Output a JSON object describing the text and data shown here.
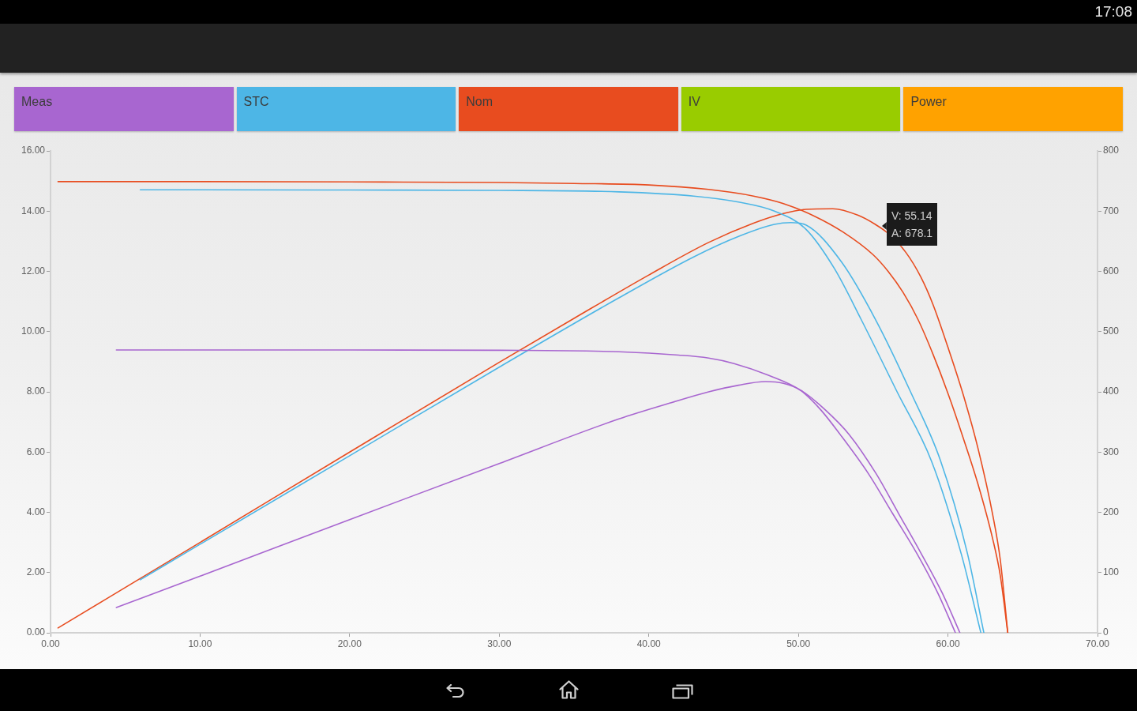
{
  "chart_data": {
    "type": "line",
    "xlim": [
      0,
      70
    ],
    "xticks": [
      {
        "value": 0,
        "label": "0.00"
      },
      {
        "value": 10,
        "label": "10.00"
      },
      {
        "value": 20,
        "label": "20.00"
      },
      {
        "value": 30,
        "label": "30.00"
      },
      {
        "value": 40,
        "label": "40.00"
      },
      {
        "value": 50,
        "label": "50.00"
      },
      {
        "value": 60,
        "label": "60.00"
      },
      {
        "value": 70,
        "label": "70.00"
      }
    ],
    "ylim": [
      0,
      16
    ],
    "yticks": [
      {
        "value": 0,
        "label": "0.00"
      },
      {
        "value": 2,
        "label": "2.00"
      },
      {
        "value": 4,
        "label": "4.00"
      },
      {
        "value": 6,
        "label": "6.00"
      },
      {
        "value": 8,
        "label": "8.00"
      },
      {
        "value": 10,
        "label": "10.00"
      },
      {
        "value": 12,
        "label": "12.00"
      },
      {
        "value": 14,
        "label": "14.00"
      },
      {
        "value": 16,
        "label": "16.00"
      }
    ],
    "y2lim": [
      0,
      800
    ],
    "y2ticks": [
      0,
      100,
      200,
      300,
      400,
      500,
      600,
      700,
      800
    ],
    "legend": "top",
    "annotations": [
      "IV",
      "Power",
      "V: 55.14\nA: 678.1",
      "17:08"
    ],
    "series": [
      {
        "name": "Meas",
        "color": "#a866d0",
        "x": [
          4.4,
          10,
          20,
          30,
          38,
          42,
          44,
          45.7,
          48,
          50.2,
          51.5,
          52.8,
          54.7,
          56.3,
          57.9,
          59.3,
          60.5
        ],
        "values": [
          9.39,
          9.39,
          9.39,
          9.38,
          9.33,
          9.22,
          9.12,
          8.94,
          8.55,
          8.03,
          7.4,
          6.58,
          5.27,
          3.96,
          2.65,
          1.34,
          0
        ]
      },
      {
        "color": "#a866d0",
        "axis": "y2",
        "x": [
          4.4,
          10,
          20,
          30,
          38,
          41.5,
          44,
          46,
          47.8,
          49,
          50.2,
          51.8,
          53.4,
          55.2,
          56.7,
          58.2,
          59.6,
          60.8
        ],
        "values": [
          42,
          94,
          188,
          281,
          355,
          382,
          400,
          411,
          417,
          414,
          402,
          370,
          329,
          264,
          198,
          132,
          67,
          0
        ]
      },
      {
        "name": "STC",
        "color": "#4db6e6",
        "x": [
          6,
          10,
          20,
          30,
          38,
          43,
          46,
          48.4,
          50.5,
          52.4,
          54.2,
          56.6,
          58.9,
          60.9,
          62.2
        ],
        "values": [
          14.71,
          14.71,
          14.7,
          14.69,
          14.64,
          14.5,
          14.3,
          14.0,
          13.4,
          12.1,
          10.4,
          8.0,
          5.7,
          2.6,
          0
        ]
      },
      {
        "color": "#4db6e6",
        "axis": "y2",
        "x": [
          6,
          10,
          20,
          30,
          38,
          43,
          46,
          48.4,
          49.5,
          50.5,
          52.9,
          55.2,
          57.5,
          59.5,
          61.3,
          62.4
        ],
        "values": [
          88,
          147,
          294,
          441,
          556,
          624,
          658,
          678,
          681,
          677,
          615,
          518,
          400,
          286,
          132,
          0
        ]
      },
      {
        "name": "Nom",
        "color": "#e84c1f",
        "x": [
          0.5,
          10,
          20,
          30,
          35,
          40,
          44,
          47,
          49,
          51,
          53,
          55,
          56,
          57,
          58,
          59,
          60,
          61,
          62,
          63,
          63.5,
          64
        ],
        "values": [
          14.98,
          14.98,
          14.97,
          14.95,
          14.92,
          14.87,
          14.72,
          14.5,
          14.25,
          13.85,
          13.3,
          12.55,
          12.0,
          11.3,
          10.4,
          9.25,
          7.95,
          6.5,
          4.95,
          3.1,
          1.9,
          0
        ]
      },
      {
        "color": "#e84c1f",
        "axis": "y2",
        "x": [
          0.5,
          10,
          20,
          30,
          35,
          40,
          44,
          47,
          49,
          50.5,
          52.3,
          54,
          55.14,
          56,
          57.2,
          58.2,
          59,
          60,
          61,
          62,
          63,
          63.5,
          64
        ],
        "values": [
          8,
          150,
          300,
          449,
          522,
          594,
          648,
          680,
          696,
          703,
          704,
          693,
          678,
          663,
          631,
          590,
          545,
          474,
          397,
          307,
          195,
          121,
          0
        ]
      }
    ]
  }
}
